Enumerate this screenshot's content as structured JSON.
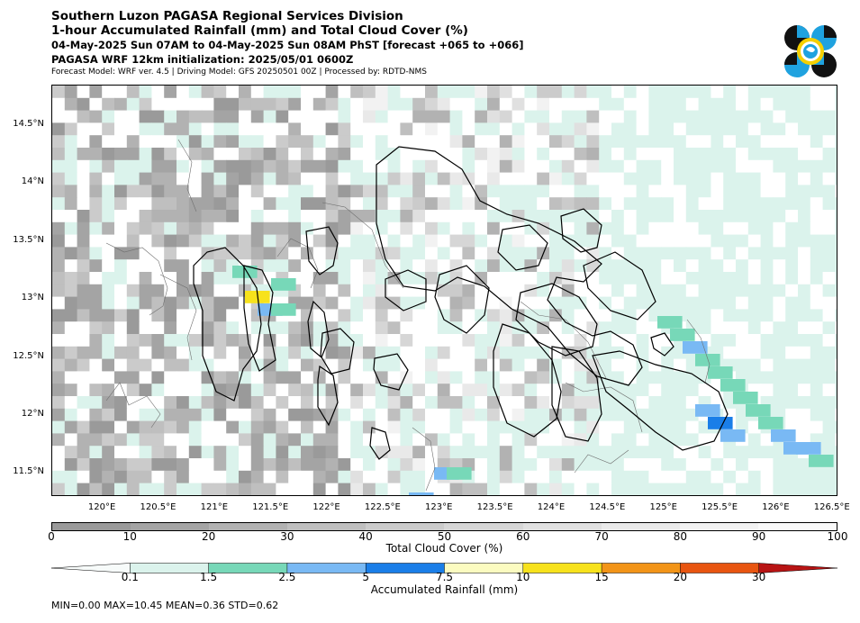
{
  "header": {
    "line1": "Southern Luzon PAGASA Regional Services Division",
    "line2": "1-hour Accumulated Rainfall (mm) and Total Cloud Cover (%)",
    "line3": "04-May-2025 Sun 07AM to 04-May-2025 Sun 08AM PhST [forecast +065 to +066]",
    "line4": "PAGASA WRF 12km initialization: 2025/05/01 0600Z",
    "line5": "Forecast Model: WRF ver. 4.5 | Driving Model: GFS 20250501 00Z | Processed by: RDTD-NMS"
  },
  "logo": {
    "icon": "pagasa-logo-icon",
    "colors": [
      "#111111",
      "#1fa2df",
      "#f5d000"
    ]
  },
  "map": {
    "lat_labels": [
      "14.5°N",
      "14°N",
      "13.5°N",
      "13°N",
      "12.5°N",
      "12°N",
      "11.5°N"
    ],
    "lon_labels": [
      "120°E",
      "120.5°E",
      "121°E",
      "121.5°E",
      "122°E",
      "122.5°E",
      "123°E",
      "123.5°E",
      "124°E",
      "124.5°E",
      "125°E",
      "125.5°E",
      "126°E",
      "126.5°E"
    ],
    "lat_range": [
      11.3,
      14.85
    ],
    "lon_range": [
      119.55,
      126.55
    ]
  },
  "cloud_legend": {
    "ticks": [
      "0",
      "10",
      "20",
      "30",
      "40",
      "50",
      "60",
      "70",
      "80",
      "90",
      "100"
    ],
    "label": "Total Cloud Cover (%)",
    "colors": [
      "#9a9a9a",
      "#a4a4a4",
      "#b2b2b2",
      "#bfbfbf",
      "#cbcbcb",
      "#d6d6d6",
      "#e0e0e0",
      "#e9e9e9",
      "#f2f2f2",
      "#fafafa"
    ]
  },
  "rain_legend": {
    "ticks": [
      "0.1",
      "1.5",
      "2.5",
      "5",
      "7.5",
      "10",
      "15",
      "20",
      "30"
    ],
    "label": "Accumulated Rainfall (mm)",
    "colors": [
      "#f7fbfa",
      "#dbf3ec",
      "#77d8b8",
      "#79b9f4",
      "#1a7ee8",
      "#fbfbc0",
      "#f7e21c",
      "#f29417",
      "#e85510",
      "#b81414"
    ]
  },
  "stats": "MIN=0.00   MAX=10.45   MEAN=0.36   STD=0.62"
}
